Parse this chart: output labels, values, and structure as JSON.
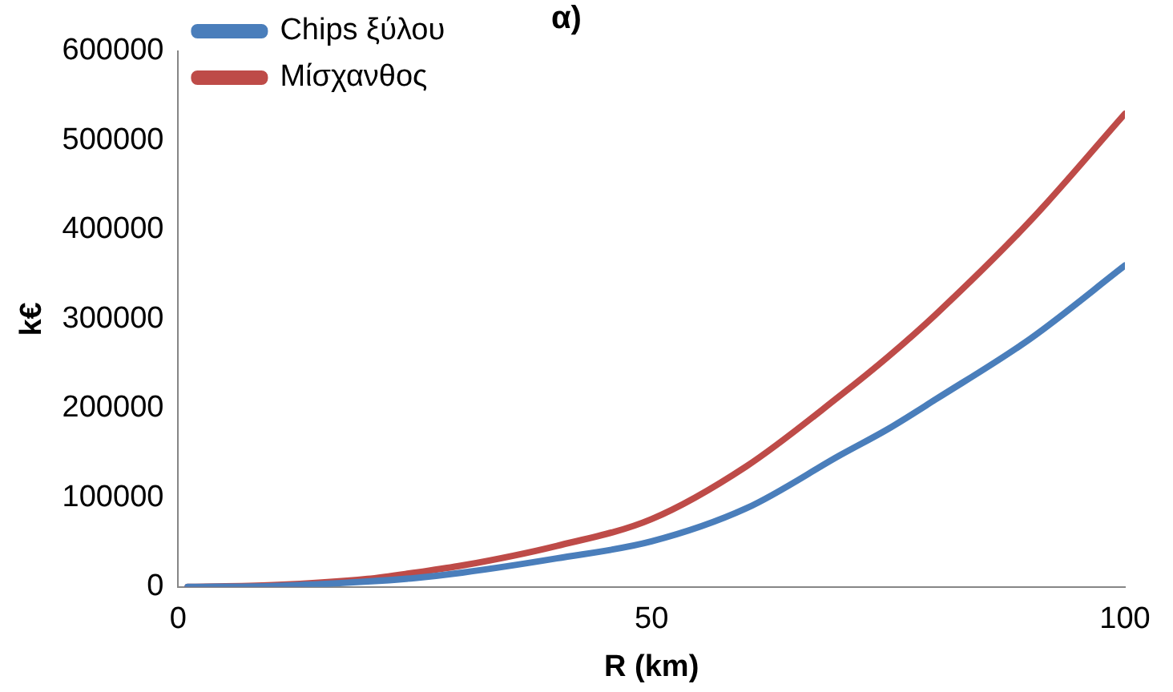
{
  "chart_data": {
    "type": "line",
    "title": "α)",
    "xlabel": "R (km)",
    "ylabel": "k€",
    "xlim": [
      0,
      100
    ],
    "xticks": [
      0,
      50,
      100
    ],
    "ylim": [
      0,
      600000
    ],
    "yticks": [
      0,
      100000,
      200000,
      300000,
      400000,
      500000,
      600000
    ],
    "grid": false,
    "legend": "top left",
    "marker": "none",
    "line_style": "solid",
    "series": [
      {
        "name": "Chips ξύλου",
        "color": "#4a7ebb",
        "x": [
          1,
          10,
          20,
          25,
          30,
          40,
          50,
          60,
          70,
          75,
          80,
          90,
          100
        ],
        "values": [
          0,
          1000,
          6000,
          10000,
          16000,
          32000,
          51000,
          88000,
          148000,
          177000,
          210000,
          278000,
          360000
        ]
      },
      {
        "name": "Μίσχανθος",
        "color": "#be4b48",
        "x": [
          1,
          10,
          20,
          25,
          30,
          40,
          50,
          60,
          70,
          75,
          80,
          90,
          100
        ],
        "values": [
          0,
          2000,
          9000,
          16000,
          24000,
          46000,
          76000,
          135000,
          215000,
          258000,
          305000,
          410000,
          530000
        ]
      }
    ]
  }
}
